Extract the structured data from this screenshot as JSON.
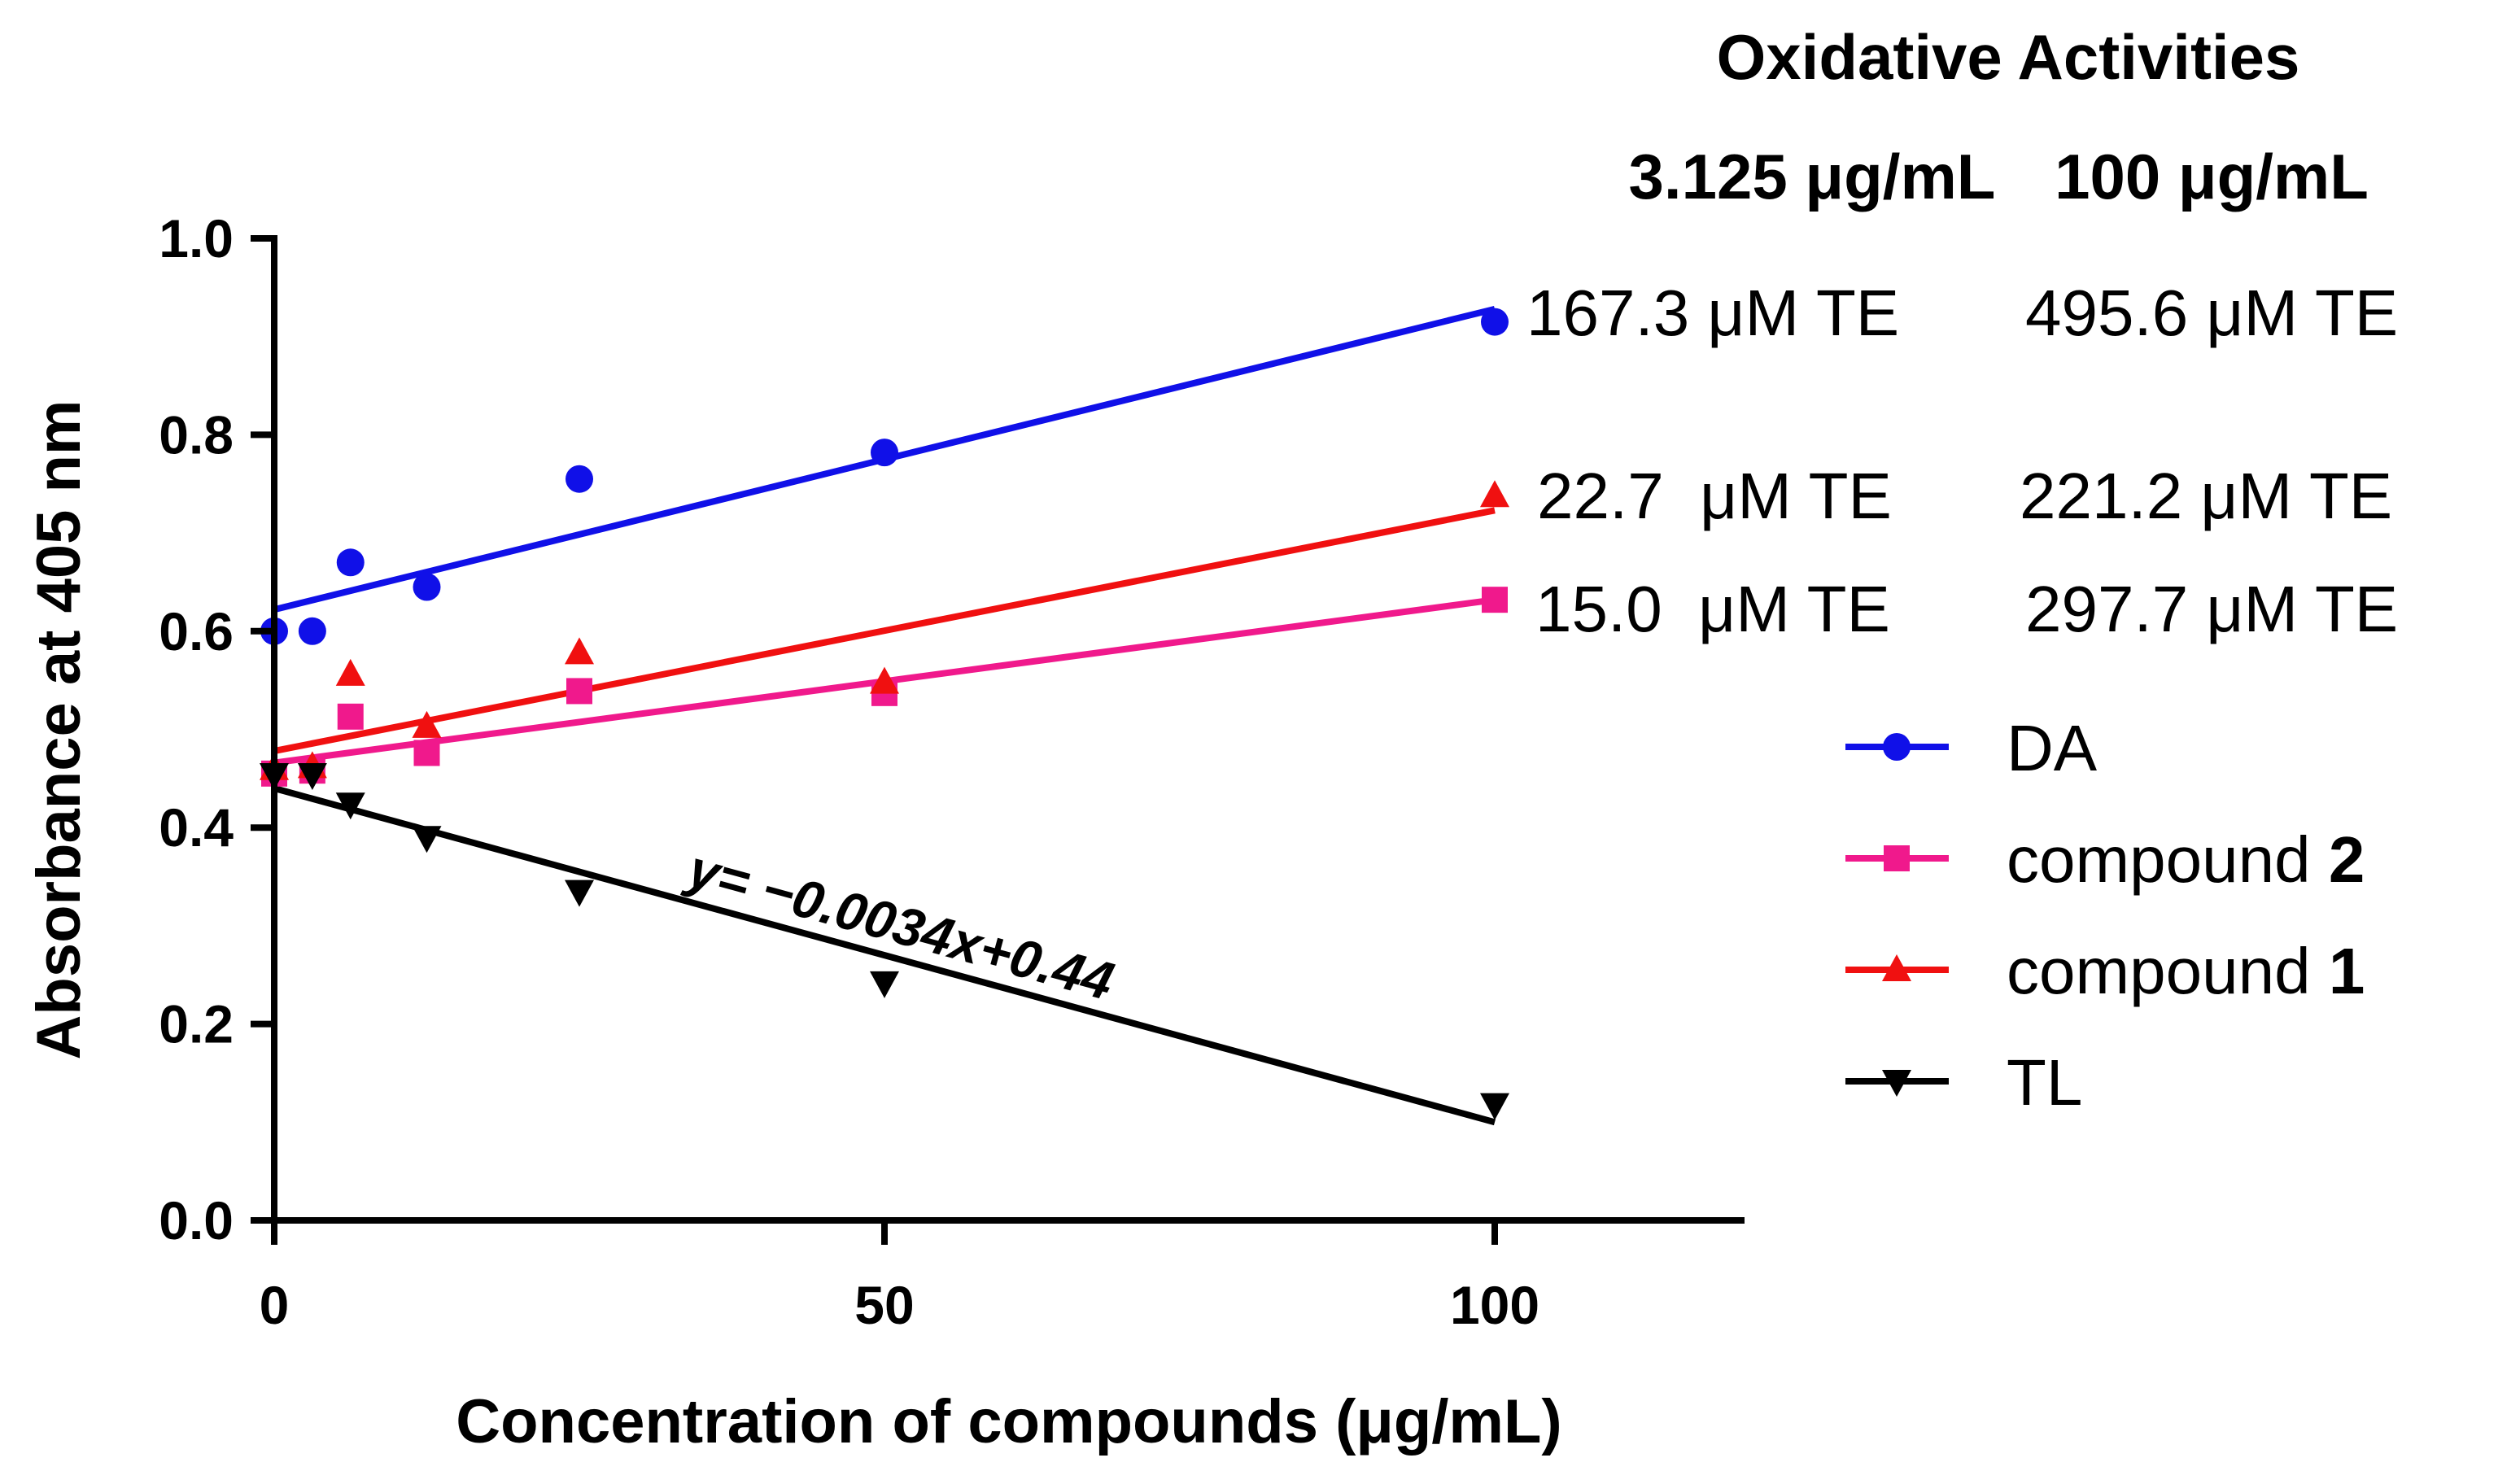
{
  "chart_data": {
    "type": "scatter",
    "title": "Oxidative Activities",
    "xlabel": "Concentration of compounds (μg/mL)",
    "ylabel": "Absorbance at 405 nm",
    "xlim": [
      0,
      120
    ],
    "ylim": [
      0.0,
      1.0
    ],
    "x_ticks": [
      0,
      50,
      100
    ],
    "x_tick_labels": [
      "0",
      "50",
      "100"
    ],
    "y_ticks": [
      0.0,
      0.2,
      0.4,
      0.6,
      0.8,
      1.0
    ],
    "y_tick_labels": [
      "0.0",
      "0.2",
      "0.4",
      "0.6",
      "0.8",
      "1.0"
    ],
    "series": [
      {
        "name": "DA",
        "color": "#1010e8",
        "marker": "circle",
        "x": [
          0,
          3.125,
          6.25,
          12.5,
          25,
          50,
          100
        ],
        "y": [
          0.6,
          0.6,
          0.67,
          0.645,
          0.755,
          0.782,
          0.915
        ],
        "fit": {
          "x": [
            0,
            100
          ],
          "y": [
            0.622,
            0.928
          ]
        }
      },
      {
        "name": "compound 2",
        "name_prefix": "compound ",
        "name_bold": "2",
        "color": "#f0198c",
        "marker": "square",
        "x": [
          0,
          3.125,
          6.25,
          12.5,
          25,
          50,
          100
        ],
        "y": [
          0.455,
          0.458,
          0.513,
          0.476,
          0.539,
          0.537,
          0.632
        ],
        "fit": {
          "x": [
            0,
            100
          ],
          "y": [
            0.466,
            0.632
          ]
        }
      },
      {
        "name": "compound 1",
        "name_prefix": "compound ",
        "name_bold": "1",
        "color": "#f01010",
        "marker": "triangle-up",
        "x": [
          0,
          3.125,
          6.25,
          12.5,
          25,
          50,
          100
        ],
        "y": [
          0.46,
          0.462,
          0.556,
          0.503,
          0.578,
          0.548,
          0.738
        ],
        "fit": {
          "x": [
            0,
            100
          ],
          "y": [
            0.478,
            0.723
          ]
        }
      },
      {
        "name": "TL",
        "color": "#000000",
        "marker": "triangle-down",
        "x": [
          0,
          3.125,
          6.25,
          12.5,
          25,
          50,
          100
        ],
        "y": [
          0.454,
          0.454,
          0.424,
          0.39,
          0.335,
          0.242,
          0.118
        ],
        "fit": {
          "x": [
            0,
            100
          ],
          "y": [
            0.44,
            0.1
          ]
        }
      }
    ],
    "annotation": {
      "equation": "y= −0.0034x+0.44",
      "x": 41,
      "y": 0.31,
      "angle_follows_series": "TL"
    },
    "activity_table": {
      "headers": [
        "3.125 μg/mL",
        "100 μg/mL"
      ],
      "rows": [
        {
          "series": "DA",
          "values": [
            "167.3 μM TE",
            "495.6 μM TE"
          ]
        },
        {
          "series": "compound 1",
          "values": [
            "22.7  μM TE",
            "221.2 μM TE"
          ]
        },
        {
          "series": "compound 2",
          "values": [
            "15.0  μM TE",
            "297.7 μM TE"
          ]
        }
      ]
    },
    "legend_position": "right"
  }
}
